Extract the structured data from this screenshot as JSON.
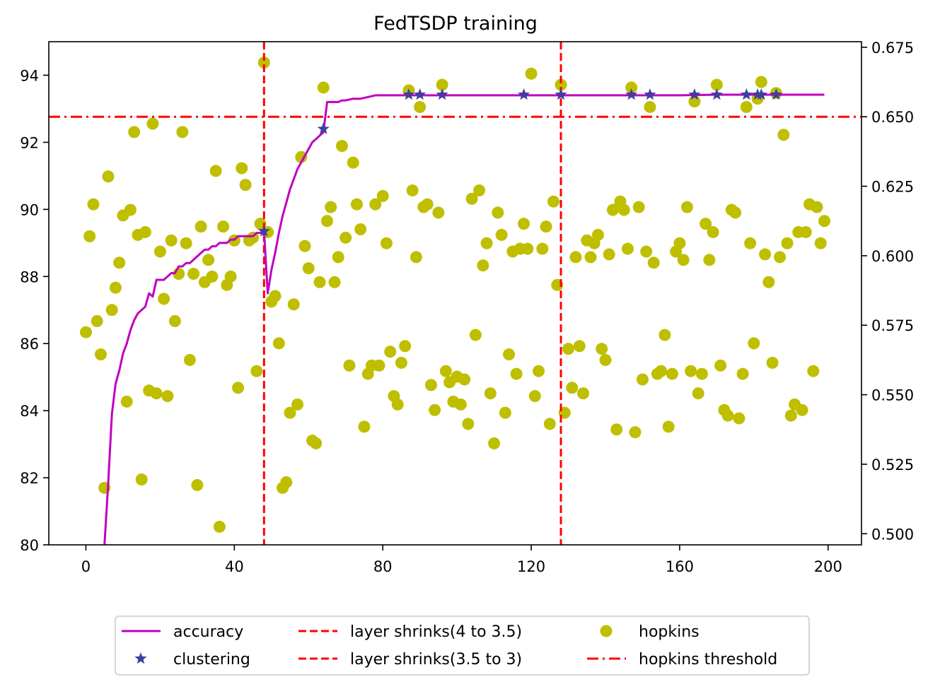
{
  "chart_data": {
    "type": "line",
    "title": "FedTSDP training",
    "xlabel": "",
    "ylabel_left": "",
    "ylabel_right": "",
    "xlim": [
      -10,
      209
    ],
    "ylim_left": [
      80,
      95
    ],
    "ylim_right": [
      0.496,
      0.677
    ],
    "x_ticks": [
      0,
      40,
      80,
      120,
      160,
      200
    ],
    "y_left_ticks": [
      80,
      82,
      84,
      86,
      88,
      90,
      92,
      94
    ],
    "y_right_ticks": [
      0.5,
      0.525,
      0.55,
      0.575,
      0.6,
      0.625,
      0.65,
      0.675
    ],
    "y_right_tick_labels": [
      "0.500",
      "0.525",
      "0.550",
      "0.575",
      "0.600",
      "0.625",
      "0.650",
      "0.675"
    ],
    "grid": false,
    "legend_position": "bottom-center",
    "colors": {
      "accuracy": "#bf00bf",
      "clustering": "#3f3f9f",
      "layer_shrink": "#ff0000",
      "hopkins": "#bfbf00",
      "hopkins_threshold": "#ff0000"
    },
    "legend": [
      {
        "label": "accuracy",
        "type": "line"
      },
      {
        "label": "clustering",
        "type": "star"
      },
      {
        "label": "layer shrinks(4 to 3.5)",
        "type": "dashed"
      },
      {
        "label": "layer shrinks(3.5 to 3)",
        "type": "dashed"
      },
      {
        "label": "hopkins",
        "type": "dot"
      },
      {
        "label": "hopkins threshold",
        "type": "dashdot"
      }
    ],
    "series": [
      {
        "name": "accuracy",
        "axis": "left",
        "x": [
          5,
          6,
          7,
          8,
          9,
          10,
          11,
          12,
          13,
          14,
          15,
          16,
          17,
          18,
          19,
          20,
          21,
          22,
          23,
          24,
          25,
          26,
          27,
          28,
          29,
          30,
          31,
          32,
          33,
          34,
          35,
          36,
          37,
          38,
          39,
          40,
          41,
          42,
          43,
          44,
          45,
          46,
          47,
          48,
          49,
          50,
          51,
          52,
          53,
          54,
          55,
          56,
          57,
          58,
          59,
          60,
          61,
          62,
          63,
          64,
          65,
          66,
          67,
          68,
          69,
          70,
          72,
          74,
          76,
          78,
          80,
          85,
          90,
          100,
          110,
          120,
          130,
          140,
          150,
          160,
          170,
          180,
          190,
          199
        ],
        "values": [
          80.0,
          81.8,
          83.9,
          84.8,
          85.2,
          85.7,
          86.0,
          86.4,
          86.7,
          86.9,
          87.0,
          87.1,
          87.5,
          87.4,
          87.9,
          87.9,
          87.9,
          88.0,
          88.1,
          88.1,
          88.3,
          88.3,
          88.4,
          88.4,
          88.5,
          88.6,
          88.7,
          88.8,
          88.8,
          88.9,
          88.9,
          89.0,
          89.0,
          89.0,
          89.1,
          89.1,
          89.2,
          89.2,
          89.2,
          89.2,
          89.2,
          89.3,
          89.3,
          89.35,
          87.5,
          88.2,
          88.7,
          89.3,
          89.8,
          90.2,
          90.6,
          90.9,
          91.2,
          91.4,
          91.6,
          91.8,
          92.0,
          92.1,
          92.2,
          92.3,
          93.2,
          93.2,
          93.2,
          93.2,
          93.25,
          93.25,
          93.3,
          93.3,
          93.35,
          93.4,
          93.4,
          93.4,
          93.4,
          93.4,
          93.4,
          93.4,
          93.4,
          93.4,
          93.4,
          93.4,
          93.42,
          93.42,
          93.42,
          93.42
        ]
      },
      {
        "name": "clustering",
        "axis": "left",
        "x": [
          48,
          64,
          87,
          90,
          96,
          118,
          128,
          147,
          152,
          164,
          170,
          178,
          181,
          182,
          186
        ],
        "values": [
          89.35,
          92.4,
          93.42,
          93.42,
          93.42,
          93.42,
          93.42,
          93.42,
          93.42,
          93.42,
          93.42,
          93.42,
          93.42,
          93.42,
          93.42
        ]
      },
      {
        "name": "hopkins",
        "axis": "right",
        "x": [
          0,
          1,
          2,
          3,
          4,
          5,
          6,
          7,
          8,
          9,
          10,
          11,
          12,
          13,
          14,
          15,
          16,
          17,
          18,
          19,
          20,
          21,
          22,
          23,
          24,
          25,
          26,
          27,
          28,
          29,
          30,
          31,
          32,
          33,
          34,
          35,
          36,
          37,
          38,
          39,
          40,
          41,
          42,
          43,
          44,
          45,
          46,
          47,
          48,
          49,
          50,
          51,
          52,
          53,
          54,
          55,
          56,
          57,
          58,
          59,
          60,
          61,
          62,
          63,
          64,
          65,
          66,
          67,
          68,
          69,
          70,
          71,
          72,
          73,
          74,
          75,
          76,
          77,
          78,
          79,
          80,
          81,
          82,
          83,
          84,
          85,
          86,
          87,
          88,
          89,
          90,
          91,
          92,
          93,
          94,
          95,
          96,
          97,
          98,
          99,
          100,
          101,
          102,
          103,
          104,
          105,
          106,
          107,
          108,
          109,
          110,
          111,
          112,
          113,
          114,
          115,
          116,
          117,
          118,
          119,
          120,
          121,
          122,
          123,
          124,
          125,
          126,
          127,
          128,
          129,
          130,
          131,
          132,
          133,
          134,
          135,
          136,
          137,
          138,
          139,
          140,
          141,
          142,
          143,
          144,
          145,
          146,
          147,
          148,
          149,
          150,
          151,
          152,
          153,
          154,
          155,
          156,
          157,
          158,
          159,
          160,
          161,
          162,
          163,
          164,
          165,
          166,
          167,
          168,
          169,
          170,
          171,
          172,
          173,
          174,
          175,
          176,
          177,
          178,
          179,
          180,
          181,
          182,
          183,
          184,
          185,
          186,
          187,
          188,
          189,
          190,
          191,
          192,
          193,
          194,
          195,
          196,
          197,
          198,
          199
        ],
        "values": [
          0.5725,
          0.607,
          0.6185,
          0.5765,
          0.5645,
          0.5165,
          0.6285,
          0.5805,
          0.5885,
          0.5975,
          0.6145,
          0.5475,
          0.6165,
          0.6445,
          0.6075,
          0.5195,
          0.6085,
          0.5515,
          0.6475,
          0.5505,
          0.6015,
          0.5845,
          0.5495,
          0.6055,
          0.5765,
          0.5935,
          0.6445,
          0.6045,
          0.5625,
          0.5935,
          0.5175,
          0.6105,
          0.5905,
          0.5985,
          0.5925,
          0.6305,
          0.5025,
          0.6105,
          0.5895,
          0.5925,
          0.6055,
          0.5525,
          0.6315,
          0.6255,
          0.6055,
          0.6065,
          0.5585,
          0.6115,
          0.6695,
          0.6085,
          0.5835,
          0.5855,
          0.5685,
          0.5165,
          0.5185,
          0.5435,
          0.5825,
          0.5465,
          0.6355,
          0.6035,
          0.5955,
          0.5335,
          0.5325,
          0.5905,
          0.6605,
          0.6125,
          0.6175,
          0.5905,
          0.5995,
          0.6395,
          0.6065,
          0.5605,
          0.6335,
          0.6185,
          0.6095,
          0.5385,
          0.5575,
          0.5605,
          0.6185,
          0.5605,
          0.6215,
          0.6045,
          0.5655,
          0.5495,
          0.5465,
          0.5615,
          0.5675,
          0.6595,
          0.6235,
          0.5995,
          0.6535,
          0.6175,
          0.6185,
          0.5535,
          0.5445,
          0.6155,
          0.6615,
          0.5585,
          0.5545,
          0.5475,
          0.5565,
          0.5465,
          0.5555,
          0.5395,
          0.6205,
          0.5715,
          0.6235,
          0.5965,
          0.6045,
          0.5505,
          0.5325,
          0.6155,
          0.6075,
          0.5435,
          0.5645,
          0.6015,
          0.5575,
          0.6025,
          0.6115,
          0.6025,
          0.6655,
          0.5495,
          0.5585,
          0.6025,
          0.6105,
          0.5395,
          0.6195,
          0.5895,
          0.6615,
          0.5435,
          0.5665,
          0.5525,
          0.5995,
          0.5675,
          0.5505,
          0.6055,
          0.5995,
          0.6045,
          0.6075,
          0.5665,
          0.5625,
          0.6005,
          0.6165,
          0.5375,
          0.6195,
          0.6165,
          0.6025,
          0.6605,
          0.5365,
          0.6175,
          0.5555,
          0.6015,
          0.6535,
          0.5975,
          0.5575,
          0.5585,
          0.5715,
          0.5385,
          0.5575,
          0.6015,
          0.6045,
          0.5985,
          0.6175,
          0.5585,
          0.6555,
          0.5505,
          0.5575,
          0.6115,
          0.5985,
          0.6085,
          0.6615,
          0.5605,
          0.5445,
          0.5425,
          0.6165,
          0.6155,
          0.5415,
          0.5575,
          0.6535,
          0.6045,
          0.5685,
          0.6565,
          0.6625,
          0.6005,
          0.5905,
          0.5615,
          0.6585,
          0.5995,
          0.6435,
          0.6045,
          0.5425,
          0.5465,
          0.6085,
          0.5445,
          0.6085,
          0.6185,
          0.5585,
          0.6175,
          0.6045,
          0.6125
        ]
      }
    ],
    "vertical_lines": [
      {
        "name": "layer shrinks(4 to 3.5)",
        "x": 48
      },
      {
        "name": "layer shrinks(3.5 to 3)",
        "x": 128
      }
    ],
    "horizontal_lines": [
      {
        "name": "hopkins threshold",
        "axis": "right",
        "y": 0.65
      }
    ]
  }
}
